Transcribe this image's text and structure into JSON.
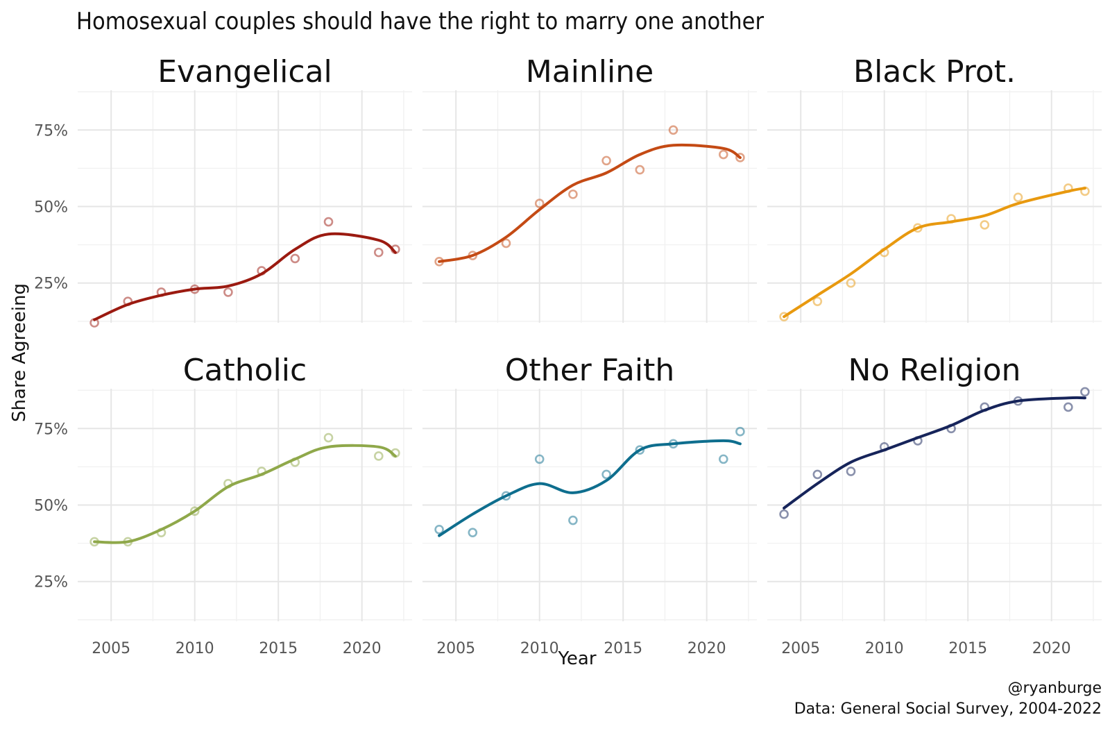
{
  "title": "Homosexual couples should have the right to marry one another",
  "caption_handle": "@ryanburge",
  "caption_source": "Data: General Social Survey, 2004-2022",
  "chart_data": {
    "type": "line",
    "title": "Homosexual couples should have the right to marry one another",
    "xlabel": "Year",
    "ylabel": "Share Agreeing",
    "xlim": [
      2003,
      2023
    ],
    "ylim": [
      0.12,
      0.88
    ],
    "x_ticks": [
      2005,
      2010,
      2015,
      2020
    ],
    "x_tick_labels": [
      "2005",
      "2010",
      "2015",
      "2020"
    ],
    "y_ticks": [
      0.25,
      0.5,
      0.75
    ],
    "y_tick_labels": [
      "25%",
      "50%",
      "75%"
    ],
    "grid": true,
    "legend": "none",
    "layout": "facet-grid 2 rows x 3 columns",
    "facets": [
      {
        "name": "Evangelical",
        "color": "#9b1a10",
        "x": [
          2004,
          2006,
          2008,
          2010,
          2012,
          2014,
          2016,
          2018,
          2021,
          2022
        ],
        "points": [
          0.12,
          0.19,
          0.22,
          0.23,
          0.22,
          0.29,
          0.33,
          0.45,
          0.35,
          0.36
        ],
        "trend": [
          0.13,
          0.18,
          0.21,
          0.23,
          0.24,
          0.28,
          0.36,
          0.41,
          0.39,
          0.35
        ]
      },
      {
        "name": "Mainline",
        "color": "#c44a14",
        "x": [
          2004,
          2006,
          2008,
          2010,
          2012,
          2014,
          2016,
          2018,
          2021,
          2022
        ],
        "points": [
          0.32,
          0.34,
          0.38,
          0.51,
          0.54,
          0.65,
          0.62,
          0.75,
          0.67,
          0.66
        ],
        "trend": [
          0.32,
          0.34,
          0.4,
          0.49,
          0.57,
          0.61,
          0.67,
          0.7,
          0.69,
          0.66
        ]
      },
      {
        "name": "Black Prot.",
        "color": "#e8990f",
        "x": [
          2004,
          2006,
          2008,
          2010,
          2012,
          2014,
          2016,
          2018,
          2021,
          2022
        ],
        "points": [
          0.14,
          0.19,
          0.25,
          0.35,
          0.43,
          0.46,
          0.44,
          0.53,
          0.56,
          0.55
        ],
        "trend": [
          0.14,
          0.21,
          0.28,
          0.36,
          0.43,
          0.45,
          0.47,
          0.51,
          0.55,
          0.56
        ]
      },
      {
        "name": "Catholic",
        "color": "#8fa84a",
        "x": [
          2004,
          2006,
          2008,
          2010,
          2012,
          2014,
          2016,
          2018,
          2021,
          2022
        ],
        "points": [
          0.38,
          0.38,
          0.41,
          0.48,
          0.57,
          0.61,
          0.64,
          0.72,
          0.66,
          0.67
        ],
        "trend": [
          0.38,
          0.38,
          0.42,
          0.48,
          0.56,
          0.6,
          0.65,
          0.69,
          0.69,
          0.66
        ]
      },
      {
        "name": "Other Faith",
        "color": "#0e6e8e",
        "x": [
          2004,
          2006,
          2008,
          2010,
          2012,
          2014,
          2016,
          2018,
          2021,
          2022
        ],
        "points": [
          0.42,
          0.41,
          0.53,
          0.65,
          0.45,
          0.6,
          0.68,
          0.7,
          0.65,
          0.74
        ],
        "trend": [
          0.4,
          0.47,
          0.53,
          0.57,
          0.54,
          0.58,
          0.68,
          0.7,
          0.71,
          0.7
        ]
      },
      {
        "name": "No Religion",
        "color": "#16245a",
        "x": [
          2004,
          2006,
          2008,
          2010,
          2012,
          2014,
          2016,
          2018,
          2021,
          2022
        ],
        "points": [
          0.47,
          0.6,
          0.61,
          0.69,
          0.71,
          0.75,
          0.82,
          0.84,
          0.82,
          0.87
        ],
        "trend": [
          0.49,
          0.57,
          0.64,
          0.68,
          0.72,
          0.76,
          0.81,
          0.84,
          0.85,
          0.85
        ]
      }
    ]
  }
}
